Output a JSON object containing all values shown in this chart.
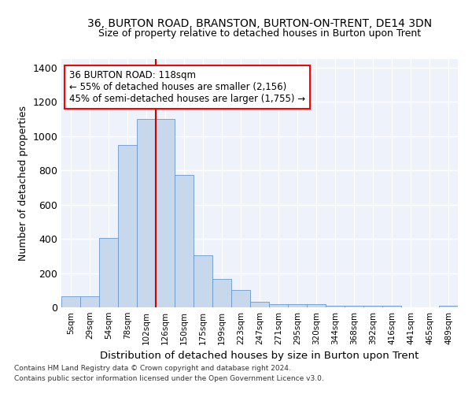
{
  "title1": "36, BURTON ROAD, BRANSTON, BURTON-ON-TRENT, DE14 3DN",
  "title2": "Size of property relative to detached houses in Burton upon Trent",
  "xlabel": "Distribution of detached houses by size in Burton upon Trent",
  "ylabel": "Number of detached properties",
  "footer1": "Contains HM Land Registry data © Crown copyright and database right 2024.",
  "footer2": "Contains public sector information licensed under the Open Government Licence v3.0.",
  "annotation_title": "36 BURTON ROAD: 118sqm",
  "annotation_line1": "← 55% of detached houses are smaller (2,156)",
  "annotation_line2": "45% of semi-detached houses are larger (1,755) →",
  "bar_color": "#c8d8ec",
  "bar_edge_color": "#6699cc",
  "vline_color": "#cc0000",
  "background_color": "#eef2fa",
  "grid_color": "#ffffff",
  "categories": [
    "5sqm",
    "29sqm",
    "54sqm",
    "78sqm",
    "102sqm",
    "126sqm",
    "150sqm",
    "175sqm",
    "199sqm",
    "223sqm",
    "247sqm",
    "271sqm",
    "295sqm",
    "320sqm",
    "344sqm",
    "368sqm",
    "392sqm",
    "416sqm",
    "441sqm",
    "465sqm",
    "489sqm"
  ],
  "bar_values": [
    65,
    65,
    405,
    950,
    1100,
    1100,
    775,
    305,
    165,
    100,
    33,
    17,
    17,
    17,
    8,
    8,
    8,
    8,
    0,
    0,
    8
  ],
  "ylim": [
    0,
    1450
  ],
  "yticks": [
    0,
    200,
    400,
    600,
    800,
    1000,
    1200,
    1400
  ],
  "vline_x": 5.0
}
